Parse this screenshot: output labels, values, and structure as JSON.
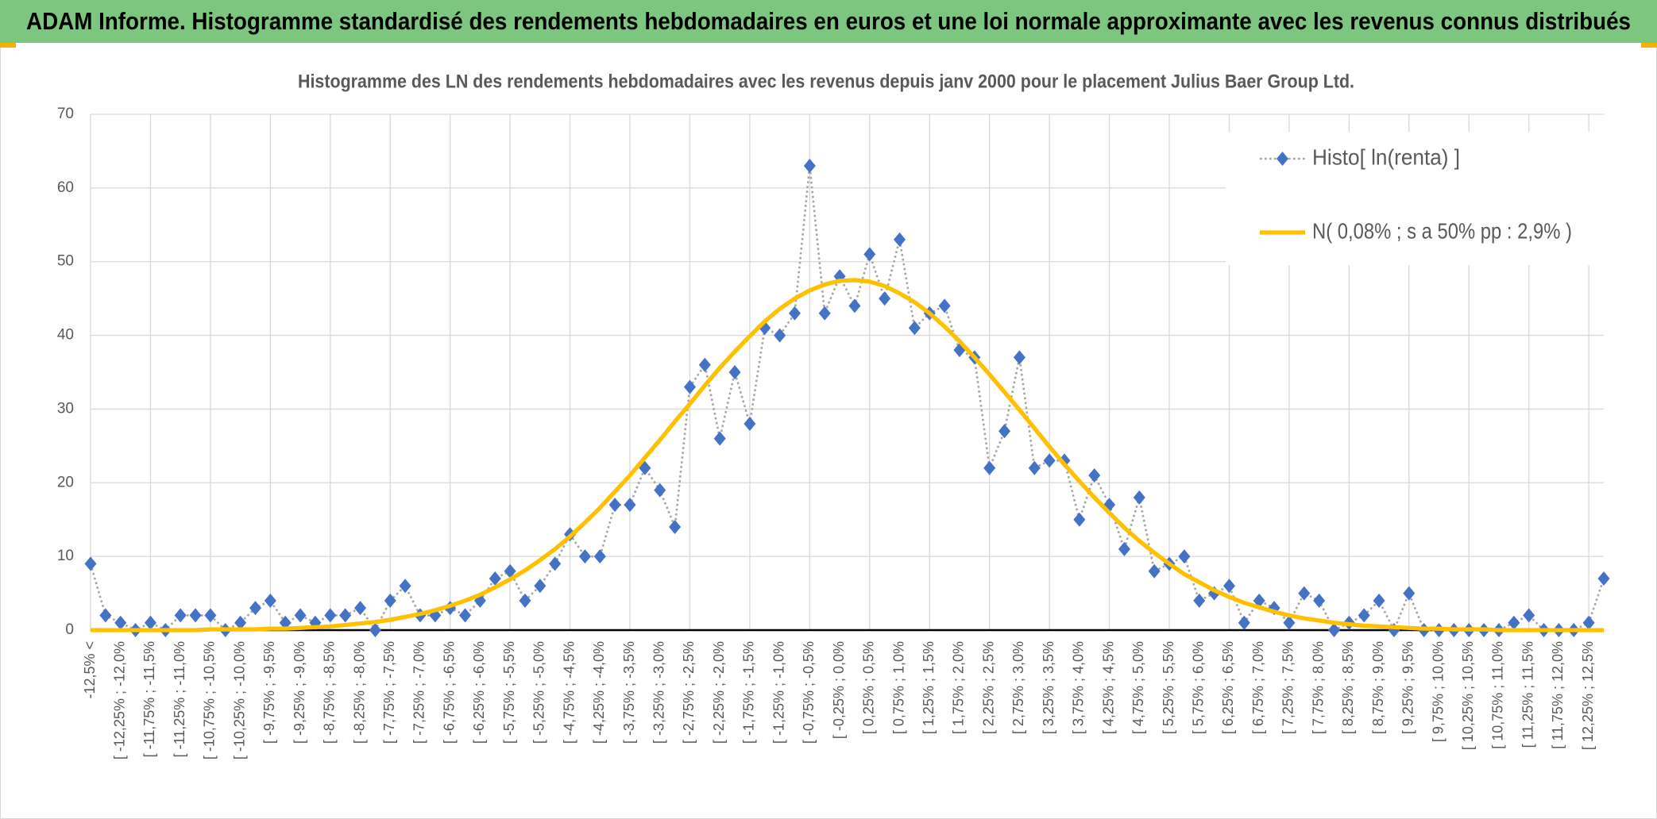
{
  "header": {
    "title": "ADAM Informe. Histogramme standardisé des rendements hebdomadaires en euros et une loi normale approximante avec les revenus connus distribués"
  },
  "chart_data": {
    "type": "line",
    "title": "Histogramme des LN des rendements hebdomadaires avec les revenus depuis janv 2000 pour le placement Julius Baer Group Ltd.",
    "categories": [
      "-12,5% <",
      null,
      "[ -12,25% ; -12,0%",
      null,
      "[ -11,75% ; -11,5%",
      null,
      "[ -11,25% ; -11,0%",
      null,
      "[ -10,75% ; -10,5%",
      null,
      "[ -10,25% ; -10,0%",
      null,
      "[ -9,75% ; -9,5%",
      null,
      "[ -9,25% ; -9,0%",
      null,
      "[ -8,75% ; -8,5%",
      null,
      "[ -8,25% ; -8,0%",
      null,
      "[ -7,75% ; -7,5%",
      null,
      "[ -7,25% ; -7,0%",
      null,
      "[ -6,75% ; -6,5%",
      null,
      "[ -6,25% ; -6,0%",
      null,
      "[ -5,75% ; -5,5%",
      null,
      "[ -5,25% ; -5,0%",
      null,
      "[ -4,75% ; -4,5%",
      null,
      "[ -4,25% ; -4,0%",
      null,
      "[ -3,75% ; -3,5%",
      null,
      "[ -3,25% ; -3,0%",
      null,
      "[ -2,75% ; -2,5%",
      null,
      "[ -2,25% ; -2,0%",
      null,
      "[ -1,75% ; -1,5%",
      null,
      "[ -1,25% ; -1,0%",
      null,
      "[ -0,75% ; -0,5%",
      null,
      "[ -0,25% ; 0,0%",
      null,
      "[ 0,25% ; 0,5%",
      null,
      "[ 0,75% ; 1,0%",
      null,
      "[ 1,25% ; 1,5%",
      null,
      "[ 1,75% ; 2,0%",
      null,
      "[ 2,25% ; 2,5%",
      null,
      "[ 2,75% ; 3,0%",
      null,
      "[ 3,25% ; 3,5%",
      null,
      "[ 3,75% ; 4,0%",
      null,
      "[ 4,25% ; 4,5%",
      null,
      "[ 4,75% ; 5,0%",
      null,
      "[ 5,25% ; 5,5%",
      null,
      "[ 5,75% ; 6,0%",
      null,
      "[ 6,25% ; 6,5%",
      null,
      "[ 6,75% ; 7,0%",
      null,
      "[ 7,25% ; 7,5%",
      null,
      "[ 7,75% ; 8,0%",
      null,
      "[ 8,25% ; 8,5%",
      null,
      "[ 8,75% ; 9,0%",
      null,
      "[ 9,25% ; 9,5%",
      null,
      "[ 9,75% ; 10,0%",
      null,
      "[ 10,25% ; 10,5%",
      null,
      "[ 10,75% ; 11,0%",
      null,
      "[ 11,25% ; 11,5%",
      null,
      "[ 11,75% ; 12,0%",
      null,
      "[ 12,25% ; 12,5%",
      null
    ],
    "series": [
      {
        "name": "Histo[ ln(renta) ]",
        "color": "#4472c4",
        "line_color": "#a5a5a5",
        "dash": "dotted",
        "marker": "diamond",
        "values": [
          9,
          2,
          1,
          0,
          1,
          0,
          2,
          2,
          2,
          0,
          1,
          3,
          4,
          1,
          2,
          1,
          2,
          2,
          3,
          0,
          4,
          6,
          2,
          2,
          3,
          2,
          4,
          7,
          8,
          4,
          6,
          9,
          13,
          10,
          10,
          17,
          17,
          22,
          19,
          14,
          33,
          36,
          26,
          35,
          28,
          41,
          40,
          43,
          63,
          43,
          48,
          44,
          51,
          45,
          53,
          41,
          43,
          44,
          38,
          37,
          22,
          27,
          37,
          22,
          23,
          23,
          15,
          21,
          17,
          11,
          18,
          8,
          9,
          10,
          4,
          5,
          6,
          1,
          4,
          3,
          1,
          5,
          4,
          0,
          1,
          2,
          4,
          0,
          5,
          0,
          0,
          0,
          0,
          0,
          0,
          1,
          2,
          0,
          0,
          0,
          1,
          7
        ]
      },
      {
        "name": "N( 0,08% ; s a 50% pp : 2,9% )",
        "color": "#ffc000",
        "values": [
          0.0,
          0.0,
          0.0,
          0.0,
          0.0,
          0.0,
          0.0,
          0.0,
          0.1,
          0.1,
          0.1,
          0.1,
          0.2,
          0.2,
          0.3,
          0.4,
          0.5,
          0.7,
          0.9,
          1.1,
          1.4,
          1.8,
          2.2,
          2.7,
          3.3,
          4.0,
          4.8,
          5.8,
          6.9,
          8.1,
          9.5,
          11.0,
          12.7,
          14.6,
          16.6,
          18.8,
          21.0,
          23.4,
          25.8,
          28.3,
          30.7,
          33.2,
          35.6,
          37.8,
          39.9,
          41.9,
          43.6,
          45.0,
          46.1,
          46.9,
          47.4,
          47.5,
          47.3,
          46.7,
          45.7,
          44.5,
          43.0,
          41.2,
          39.2,
          37.0,
          34.7,
          32.3,
          29.9,
          27.4,
          24.9,
          22.5,
          20.2,
          18.0,
          15.9,
          13.9,
          12.1,
          10.5,
          9.0,
          7.6,
          6.5,
          5.4,
          4.5,
          3.7,
          3.1,
          2.5,
          2.0,
          1.6,
          1.3,
          1.0,
          0.8,
          0.6,
          0.5,
          0.4,
          0.3,
          0.2,
          0.2,
          0.1,
          0.1,
          0.1,
          0.0,
          0.0,
          0.0,
          0.0,
          0.0,
          0.0,
          0.0,
          0.0
        ]
      }
    ],
    "ylim": [
      0,
      70
    ],
    "yticks": [
      0,
      10,
      20,
      30,
      40,
      50,
      60,
      70
    ],
    "grid": true,
    "legend": "top-right"
  }
}
